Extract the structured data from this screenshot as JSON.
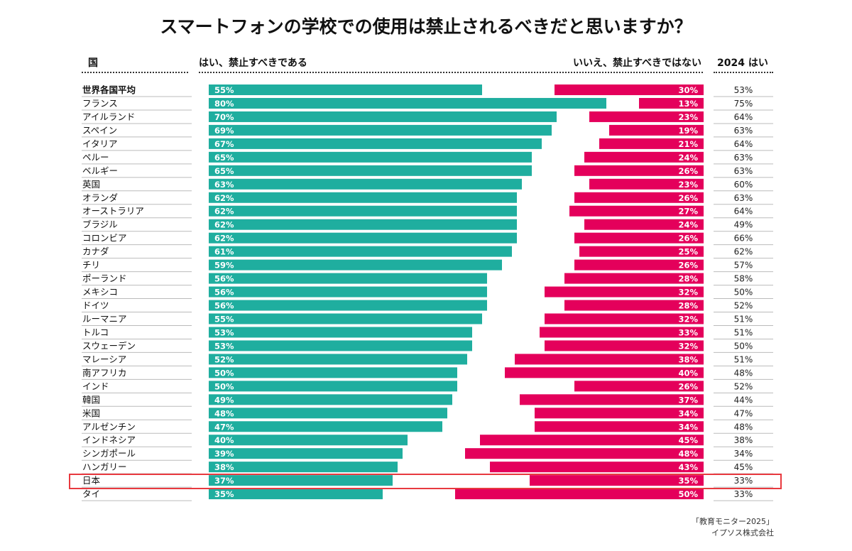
{
  "chart_data": {
    "type": "bar",
    "title": "スマートフォンの学校での使用は禁止されるべきだと思いますか？",
    "column_headers": {
      "country": "国",
      "yes": "はい、禁止すべきである",
      "no": "いいえ、禁止すべきではない",
      "prev": "2024 はい"
    },
    "categories": [
      "世界各国平均",
      "フランス",
      "アイルランド",
      "スペイン",
      "イタリア",
      "ペルー",
      "ベルギー",
      "英国",
      "オランダ",
      "オーストラリア",
      "ブラジル",
      "コロンビア",
      "カナダ",
      "チリ",
      "ポーランド",
      "メキシコ",
      "ドイツ",
      "ルーマニア",
      "トルコ",
      "スウェーデン",
      "マレーシア",
      "南アフリカ",
      "インド",
      "韓国",
      "米国",
      "アルゼンチン",
      "インドネシア",
      "シンガポール",
      "ハンガリー",
      "日本",
      "タイ"
    ],
    "series": [
      {
        "name": "はい、禁止すべきである",
        "color": "#1fae9f",
        "values": [
          55,
          80,
          70,
          69,
          67,
          65,
          65,
          63,
          62,
          62,
          62,
          62,
          61,
          59,
          56,
          56,
          56,
          55,
          53,
          53,
          52,
          50,
          50,
          49,
          48,
          47,
          40,
          39,
          38,
          37,
          35
        ]
      },
      {
        "name": "いいえ、禁止すべきではない",
        "color": "#e4005b",
        "values": [
          30,
          13,
          23,
          19,
          21,
          24,
          26,
          23,
          26,
          27,
          24,
          26,
          25,
          26,
          28,
          32,
          28,
          32,
          33,
          32,
          38,
          40,
          26,
          37,
          34,
          34,
          45,
          48,
          43,
          35,
          50
        ]
      },
      {
        "name": "2024 はい",
        "values": [
          53,
          75,
          64,
          63,
          64,
          63,
          63,
          60,
          63,
          64,
          49,
          66,
          62,
          57,
          58,
          50,
          52,
          51,
          51,
          50,
          51,
          48,
          52,
          44,
          47,
          48,
          38,
          34,
          45,
          33,
          33
        ]
      }
    ],
    "unit": "%",
    "highlighted": "日本",
    "highlight_color": "#e8393f"
  },
  "source": {
    "line1": "「教育モニター2025」",
    "line2": "イプソス株式会社"
  }
}
